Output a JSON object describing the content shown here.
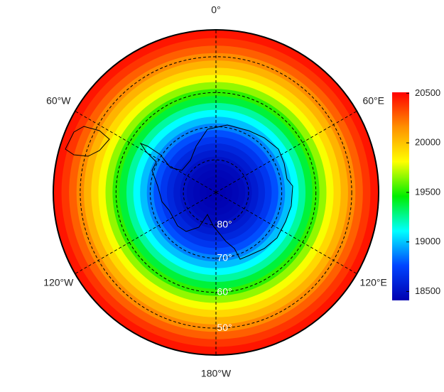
{
  "map": {
    "projection": "south-polar-stereographic",
    "lon_ticks": [
      {
        "value": 0,
        "label": "0°"
      },
      {
        "value": 60,
        "label": "60°E"
      },
      {
        "value": 120,
        "label": "120°E"
      },
      {
        "value": 180,
        "label": "180°W"
      },
      {
        "value": -120,
        "label": "120°W"
      },
      {
        "value": -60,
        "label": "60°W"
      }
    ],
    "lat_ticks": [
      {
        "value": 80,
        "label": "80°"
      },
      {
        "value": 70,
        "label": "70°"
      },
      {
        "value": 60,
        "label": "60°"
      },
      {
        "value": 50,
        "label": "50°"
      }
    ],
    "field": {
      "lat": [
        44,
        46,
        48,
        50,
        52,
        54,
        56,
        58,
        60,
        62,
        64,
        66,
        68,
        70,
        72,
        74,
        76,
        78,
        80,
        82,
        84,
        86,
        88
      ],
      "values": [
        20460,
        20380,
        20280,
        20170,
        20050,
        19930,
        19800,
        19660,
        19520,
        19380,
        19240,
        19110,
        18990,
        18880,
        18780,
        18690,
        18610,
        18550,
        18500,
        18460,
        18440,
        18425,
        18415
      ]
    },
    "colorbar": {
      "lim": [
        18410,
        20510
      ],
      "ticks": [
        18500,
        19000,
        19500,
        20000,
        20500
      ],
      "colormap": [
        "#0000b0",
        "#0044ff",
        "#00ffff",
        "#00ee00",
        "#ffff00",
        "#ff9000",
        "#ff0000"
      ]
    }
  }
}
